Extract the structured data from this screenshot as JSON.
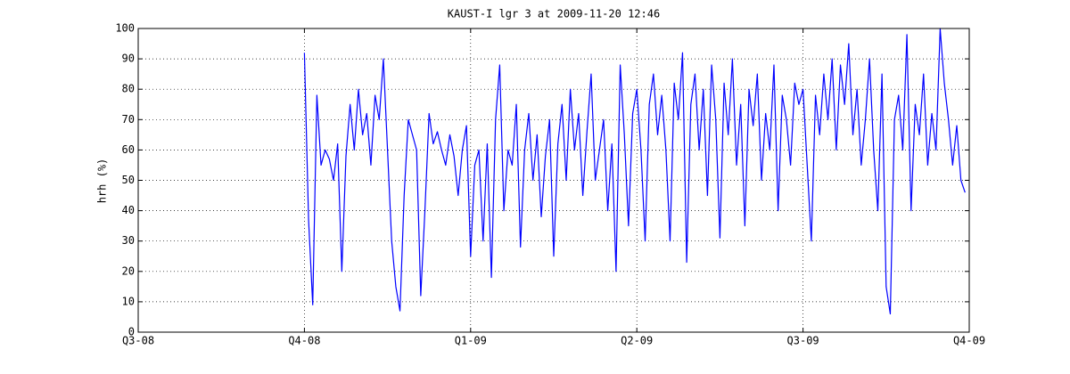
{
  "chart_data": {
    "type": "line",
    "title": "KAUST-I lgr 3 at 2009-11-20 12:46",
    "ylabel": "hrh (%)",
    "xlim": [
      0,
      5
    ],
    "xticks": [
      {
        "value": 0,
        "label": "Q3-08"
      },
      {
        "value": 1,
        "label": "Q4-08"
      },
      {
        "value": 2,
        "label": "Q1-09"
      },
      {
        "value": 3,
        "label": "Q2-09"
      },
      {
        "value": 4,
        "label": "Q3-09"
      },
      {
        "value": 5,
        "label": "Q4-09"
      }
    ],
    "ylim": [
      0,
      100
    ],
    "yticks": [
      0,
      10,
      20,
      30,
      40,
      50,
      60,
      70,
      80,
      90,
      100
    ],
    "grid": true,
    "series": [
      {
        "color": "#0000ff",
        "x": [
          1,
          1.025,
          1.05,
          1.075,
          1.1,
          1.125,
          1.15,
          1.175,
          1.2,
          1.225,
          1.25,
          1.275,
          1.3,
          1.325,
          1.35,
          1.375,
          1.4,
          1.425,
          1.45,
          1.475,
          1.5,
          1.525,
          1.55,
          1.575,
          1.6,
          1.625,
          1.65,
          1.675,
          1.7,
          1.725,
          1.75,
          1.775,
          1.8,
          1.825,
          1.85,
          1.875,
          1.9,
          1.925,
          1.95,
          1.975,
          2,
          2.025,
          2.05,
          2.075,
          2.1,
          2.125,
          2.15,
          2.175,
          2.2,
          2.225,
          2.25,
          2.275,
          2.3,
          2.325,
          2.35,
          2.375,
          2.4,
          2.425,
          2.45,
          2.475,
          2.5,
          2.525,
          2.55,
          2.575,
          2.6,
          2.625,
          2.65,
          2.675,
          2.7,
          2.725,
          2.75,
          2.775,
          2.8,
          2.825,
          2.85,
          2.875,
          2.9,
          2.925,
          2.95,
          2.975,
          3,
          3.025,
          3.05,
          3.075,
          3.1,
          3.125,
          3.15,
          3.175,
          3.2,
          3.225,
          3.25,
          3.275,
          3.3,
          3.325,
          3.35,
          3.375,
          3.4,
          3.425,
          3.45,
          3.475,
          3.5,
          3.525,
          3.55,
          3.575,
          3.6,
          3.625,
          3.65,
          3.675,
          3.7,
          3.725,
          3.75,
          3.775,
          3.8,
          3.825,
          3.85,
          3.875,
          3.9,
          3.925,
          3.95,
          3.975,
          4,
          4.025,
          4.05,
          4.075,
          4.1,
          4.125,
          4.15,
          4.175,
          4.2,
          4.225,
          4.25,
          4.275,
          4.3,
          4.325,
          4.35,
          4.375,
          4.4,
          4.425,
          4.45,
          4.475,
          4.5,
          4.525,
          4.55,
          4.575,
          4.6,
          4.625,
          4.65,
          4.675,
          4.7,
          4.725,
          4.75,
          4.775,
          4.8,
          4.825,
          4.85,
          4.875,
          4.9,
          4.925,
          4.95,
          4.975
        ],
        "values": [
          92,
          37,
          9,
          78,
          55,
          60,
          57,
          50,
          62,
          20,
          58,
          75,
          60,
          80,
          65,
          72,
          55,
          78,
          70,
          90,
          60,
          30,
          15,
          7,
          45,
          70,
          65,
          60,
          12,
          40,
          72,
          62,
          66,
          60,
          55,
          65,
          58,
          45,
          60,
          68,
          25,
          55,
          60,
          30,
          62,
          18,
          70,
          88,
          40,
          60,
          55,
          75,
          28,
          60,
          72,
          50,
          65,
          38,
          58,
          70,
          25,
          62,
          75,
          50,
          80,
          60,
          72,
          45,
          66,
          85,
          50,
          60,
          70,
          40,
          62,
          20,
          88,
          65,
          35,
          72,
          80,
          60,
          30,
          75,
          85,
          65,
          78,
          60,
          30,
          82,
          70,
          92,
          23,
          75,
          85,
          60,
          80,
          45,
          88,
          70,
          31,
          82,
          65,
          90,
          55,
          75,
          35,
          80,
          68,
          85,
          50,
          72,
          60,
          88,
          40,
          78,
          70,
          55,
          82,
          75,
          80,
          55,
          30,
          78,
          65,
          85,
          70,
          90,
          60,
          88,
          75,
          95,
          65,
          80,
          55,
          70,
          90,
          60,
          40,
          85,
          15,
          6,
          70,
          78,
          60,
          98,
          40,
          75,
          65,
          85,
          55,
          72,
          60,
          100,
          82,
          70,
          55,
          68,
          50,
          46
        ]
      }
    ]
  }
}
